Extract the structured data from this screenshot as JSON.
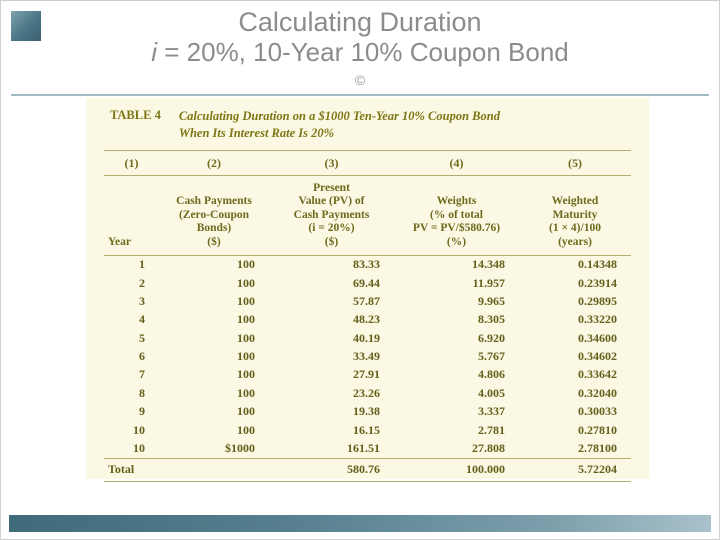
{
  "slide": {
    "title": "Calculating Duration",
    "subtitle_i": "i",
    "subtitle_rest": " = 20%, 10-Year 10% Coupon Bond",
    "copyright_mark": "©"
  },
  "colors": {
    "table_text_olive": "#6e6a1e",
    "table_background_cream": "#fbf8e3",
    "rule_tan": "#b3ad6e",
    "title_gray": "#8c8c8c",
    "accent_steel_blue": "#4b7585"
  },
  "table": {
    "label": "TABLE 4",
    "caption_lines": [
      "Calculating Duration on a $1000 Ten-Year 10% Coupon Bond",
      "When Its Interest Rate Is 20%"
    ],
    "column_numbers": [
      "(1)",
      "(2)",
      "(3)",
      "(4)",
      "(5)"
    ],
    "headers": [
      {
        "lines": [
          "Year"
        ]
      },
      {
        "lines": [
          "Cash Payments",
          "(Zero-Coupon",
          "Bonds)",
          "($)"
        ]
      },
      {
        "lines": [
          "Present",
          "Value (PV) of",
          "Cash Payments",
          "(i = 20%)",
          "($)"
        ]
      },
      {
        "lines": [
          "Weights",
          "(% of total",
          "PV = PV/$580.76)",
          "(%)"
        ]
      },
      {
        "lines": [
          "Weighted",
          "Maturity",
          "(1 × 4)/100",
          "(years)"
        ]
      }
    ],
    "rows": [
      [
        "1",
        "100",
        "83.33",
        "14.348",
        "0.14348"
      ],
      [
        "2",
        "100",
        "69.44",
        "11.957",
        "0.23914"
      ],
      [
        "3",
        "100",
        "57.87",
        "9.965",
        "0.29895"
      ],
      [
        "4",
        "100",
        "48.23",
        "8.305",
        "0.33220"
      ],
      [
        "5",
        "100",
        "40.19",
        "6.920",
        "0.34600"
      ],
      [
        "6",
        "100",
        "33.49",
        "5.767",
        "0.34602"
      ],
      [
        "7",
        "100",
        "27.91",
        "4.806",
        "0.33642"
      ],
      [
        "8",
        "100",
        "23.26",
        "4.005",
        "0.32040"
      ],
      [
        "9",
        "100",
        "19.38",
        "3.337",
        "0.30033"
      ],
      [
        "10",
        "100",
        "16.15",
        "2.781",
        "0.27810"
      ],
      [
        "10",
        "$1000",
        "161.51",
        "27.808",
        "2.78100"
      ]
    ],
    "total_row": [
      "Total",
      "",
      "580.76",
      "100.000",
      "5.72204"
    ]
  }
}
